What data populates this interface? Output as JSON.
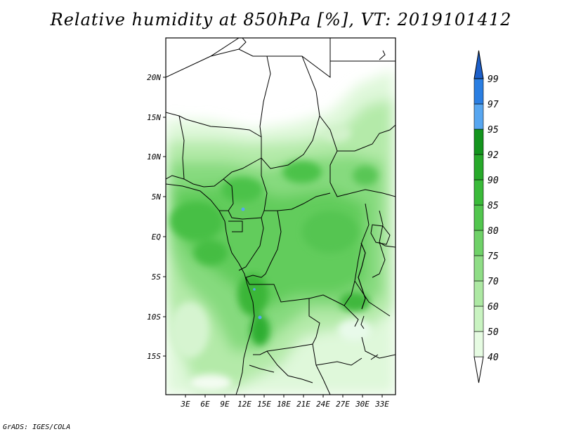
{
  "title": "Relative humidity at 850hPa [%], VT: 2019101412",
  "credit": "GrADS: IGES/COLA",
  "map": {
    "lat_labels": [
      "20N",
      "15N",
      "10N",
      "5N",
      "EQ",
      "5S",
      "10S",
      "15S"
    ],
    "lon_labels": [
      "3E",
      "6E",
      "9E",
      "12E",
      "15E",
      "18E",
      "21E",
      "24E",
      "27E",
      "30E",
      "33E"
    ],
    "lat_range": [
      -20,
      25
    ],
    "lon_range": [
      0,
      35
    ]
  },
  "colorbar": {
    "labels": [
      "40",
      "50",
      "60",
      "70",
      "75",
      "80",
      "85",
      "90",
      "92",
      "95",
      "97",
      "99"
    ],
    "colors": [
      "#ffffff",
      "#e6fbe2",
      "#c9f3c1",
      "#ade8a3",
      "#8fdd86",
      "#6fd168",
      "#52c64e",
      "#3aba39",
      "#27a92a",
      "#13941d",
      "#57a6f0",
      "#2a7ee2",
      "#1c5fc9"
    ]
  }
}
